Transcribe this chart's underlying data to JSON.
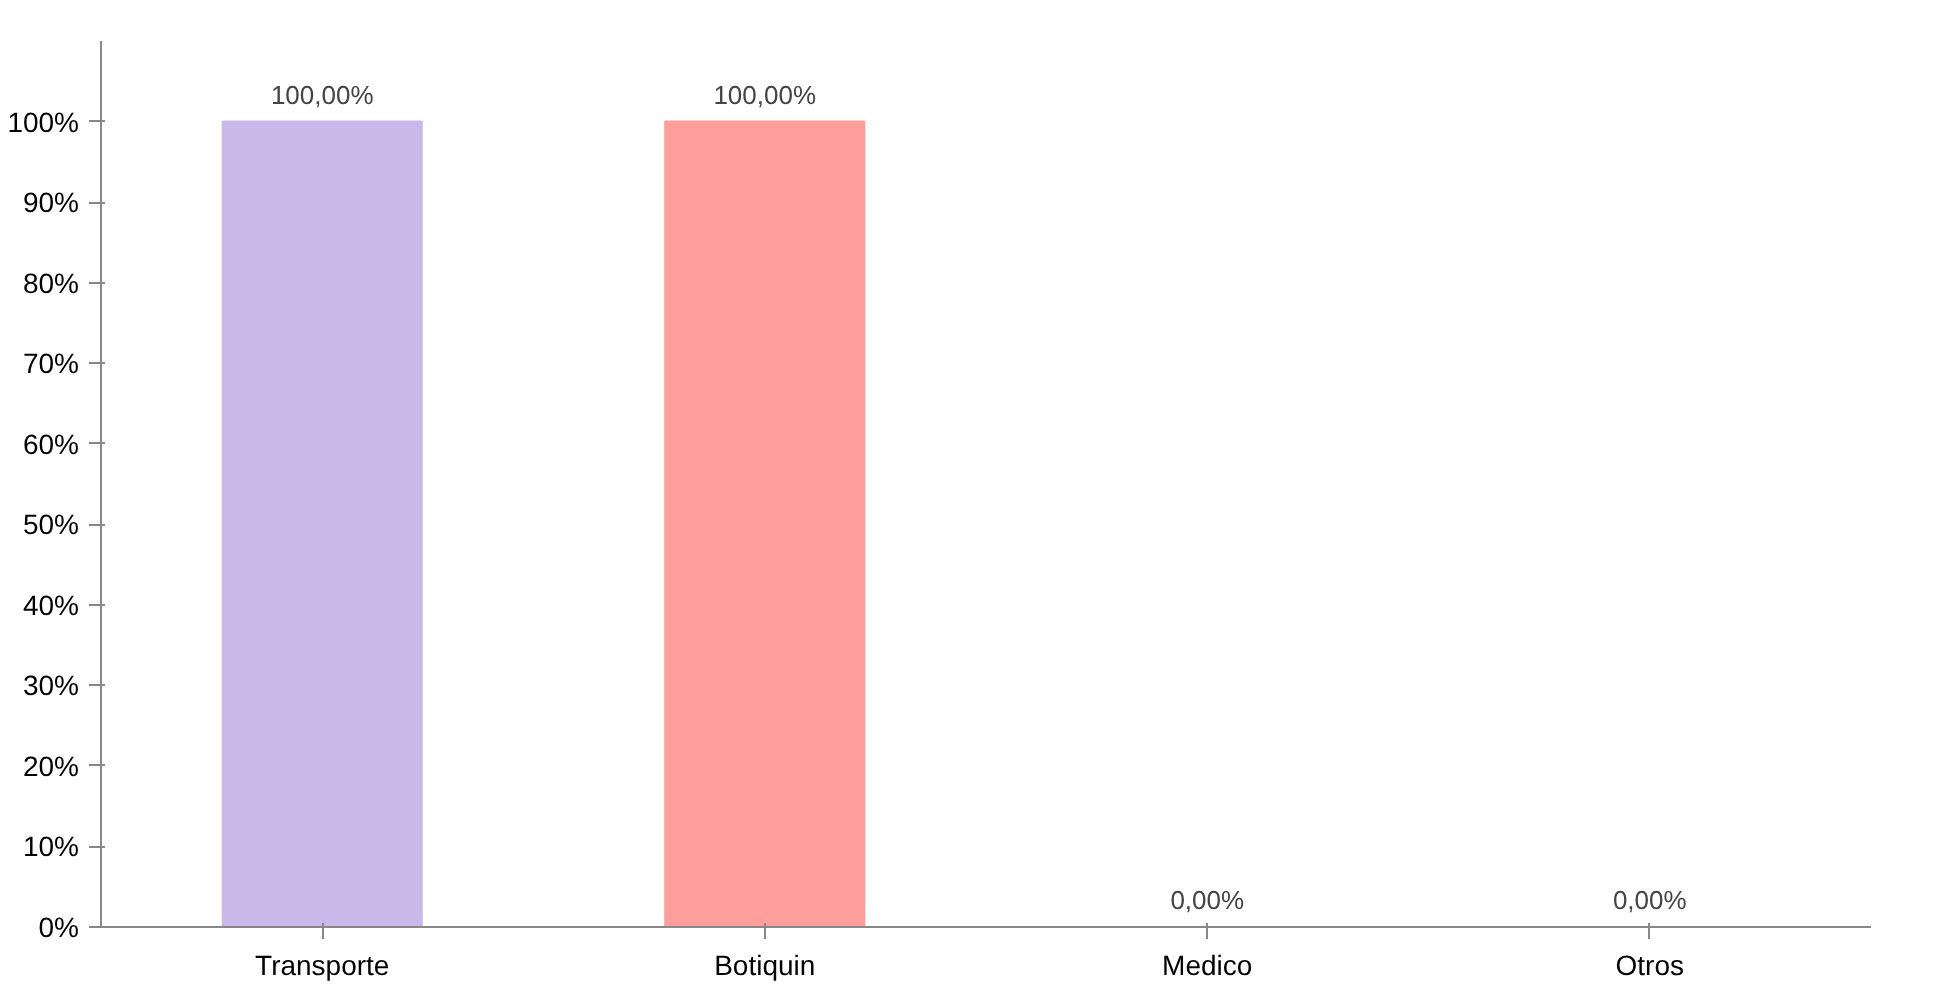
{
  "chart_data": {
    "type": "bar",
    "categories": [
      "Transporte",
      "Botiquin",
      "Medico",
      "Otros"
    ],
    "values": [
      100,
      100,
      0,
      0
    ],
    "colors": [
      "#c9b8e8",
      "#ff9e9a",
      "#4f81bd",
      "#9bbb59"
    ],
    "value_labels": [
      "100,00%",
      "100,00%",
      "0,00%",
      "0,00%"
    ],
    "ylim": [
      0,
      110
    ],
    "yticks": [
      {
        "value": 0,
        "label": "0%"
      },
      {
        "value": 10,
        "label": "10%"
      },
      {
        "value": 20,
        "label": "20%"
      },
      {
        "value": 30,
        "label": "30%"
      },
      {
        "value": 40,
        "label": "40%"
      },
      {
        "value": 50,
        "label": "50%"
      },
      {
        "value": 60,
        "label": "60%"
      },
      {
        "value": 70,
        "label": "70%"
      },
      {
        "value": 80,
        "label": "80%"
      },
      {
        "value": 90,
        "label": "90%"
      },
      {
        "value": 100,
        "label": "100%"
      }
    ],
    "grid": false
  }
}
